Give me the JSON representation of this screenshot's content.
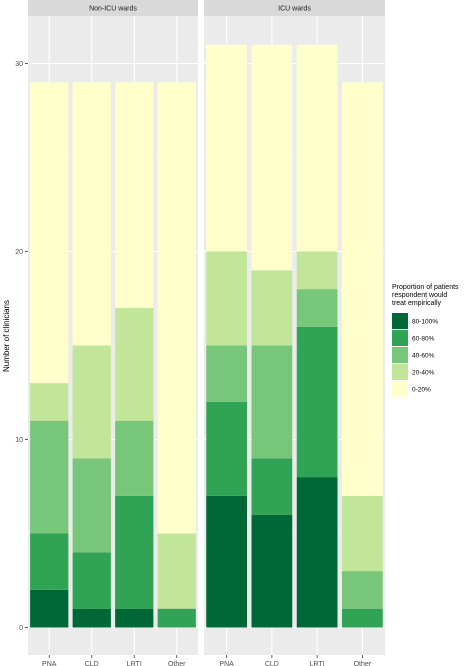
{
  "chart_data": {
    "type": "bar",
    "stacked": true,
    "ylabel": "Number of clinicians",
    "ylim": [
      0,
      32
    ],
    "yticks": [
      0,
      10,
      20,
      30
    ],
    "grid": true,
    "legend_position": "right",
    "legend_title": [
      "Proportion of patients",
      "respondent would",
      "treat empirically"
    ],
    "levels": [
      "80-100%",
      "60-80%",
      "40-60%",
      "20-40%",
      "0-20%"
    ],
    "colors": [
      "#006837",
      "#31a354",
      "#78c679",
      "#c2e699",
      "#ffffcc"
    ],
    "categories": [
      "PNA",
      "CLD",
      "LRTI",
      "Other"
    ],
    "panels": [
      {
        "title": "Non-ICU wards",
        "series": [
          {
            "name": "80-100%",
            "values": [
              2,
              1,
              1,
              0
            ]
          },
          {
            "name": "60-80%",
            "values": [
              3,
              3,
              6,
              1
            ]
          },
          {
            "name": "40-60%",
            "values": [
              6,
              5,
              4,
              0
            ]
          },
          {
            "name": "20-40%",
            "values": [
              2,
              6,
              6,
              4
            ]
          },
          {
            "name": "0-20%",
            "values": [
              16,
              14,
              12,
              24
            ]
          }
        ]
      },
      {
        "title": "ICU wards",
        "series": [
          {
            "name": "80-100%",
            "values": [
              7,
              6,
              8,
              0
            ]
          },
          {
            "name": "60-80%",
            "values": [
              5,
              3,
              8,
              1
            ]
          },
          {
            "name": "40-60%",
            "values": [
              3,
              6,
              2,
              2
            ]
          },
          {
            "name": "20-40%",
            "values": [
              5,
              4,
              2,
              4
            ]
          },
          {
            "name": "0-20%",
            "values": [
              11,
              12,
              11,
              22
            ]
          }
        ]
      }
    ]
  }
}
